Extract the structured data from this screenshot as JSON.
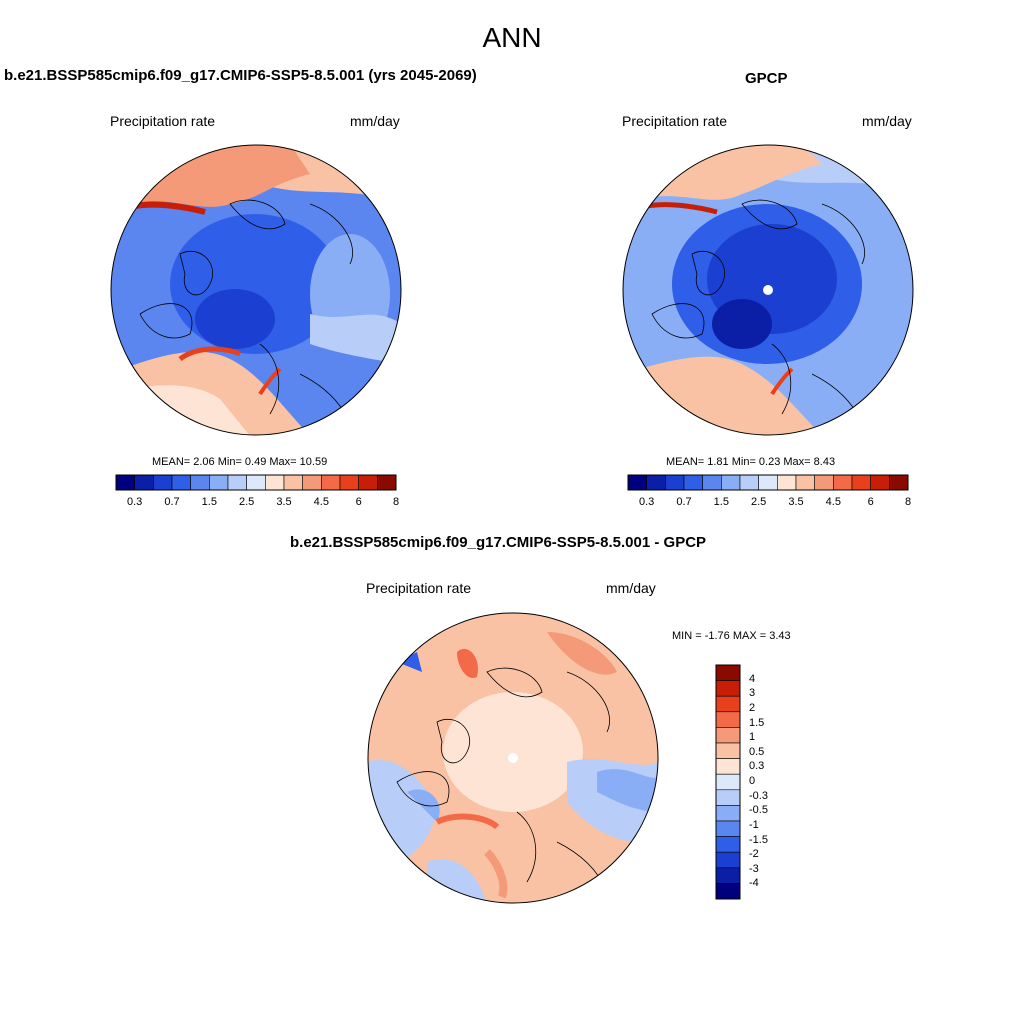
{
  "page_title": "ANN",
  "colors": {
    "abs_scale": [
      "#00007f",
      "#0a1fa6",
      "#1a3fd1",
      "#2f5fe8",
      "#5b86f0",
      "#8aaef5",
      "#b8cdf8",
      "#dde8fb",
      "#fde4d4",
      "#f9c2a4",
      "#f59a78",
      "#f26a48",
      "#e8401c",
      "#c81e08",
      "#8a0a00"
    ],
    "diff_scale": [
      "#00007f",
      "#0a1fa6",
      "#1a3fd1",
      "#2f5fe8",
      "#5b86f0",
      "#8aaef5",
      "#b8cdf8",
      "#dde8fb",
      "#fde4d4",
      "#f9c2a4",
      "#f59a78",
      "#f26a48",
      "#e8401c",
      "#c81e08",
      "#8a0a00"
    ],
    "coastline": "#000000"
  },
  "panels": [
    {
      "id": "model",
      "title": "b.e21.BSSP585cmip6.f09_g17.CMIP6-SSP5-8.5.001 (yrs 2045-2069)",
      "left_label": "Precipitation rate",
      "right_label": "mm/day",
      "stats": "MEAN=   2.06  Min=   0.49  Max=  10.59",
      "colorbar_ticks": [
        "0.3",
        "0.7",
        "1.5",
        "2.5",
        "3.5",
        "4.5",
        "6",
        "8"
      ]
    },
    {
      "id": "obs",
      "title": "GPCP",
      "left_label": "Precipitation rate",
      "right_label": "mm/day",
      "stats": "MEAN=   1.81  Min=   0.23  Max=   8.43",
      "colorbar_ticks": [
        "0.3",
        "0.7",
        "1.5",
        "2.5",
        "3.5",
        "4.5",
        "6",
        "8"
      ]
    },
    {
      "id": "diff",
      "title": "b.e21.BSSP585cmip6.f09_g17.CMIP6-SSP5-8.5.001 - GPCP",
      "left_label": "Precipitation rate",
      "right_label": "mm/day",
      "stats": "MIN =  -1.76 MAX =   3.43",
      "colorbar_ticks": [
        "4",
        "3",
        "2",
        "1.5",
        "1",
        "0.5",
        "0.3",
        "0",
        "-0.3",
        "-0.5",
        "-1",
        "-1.5",
        "-2",
        "-3",
        "-4"
      ]
    }
  ]
}
